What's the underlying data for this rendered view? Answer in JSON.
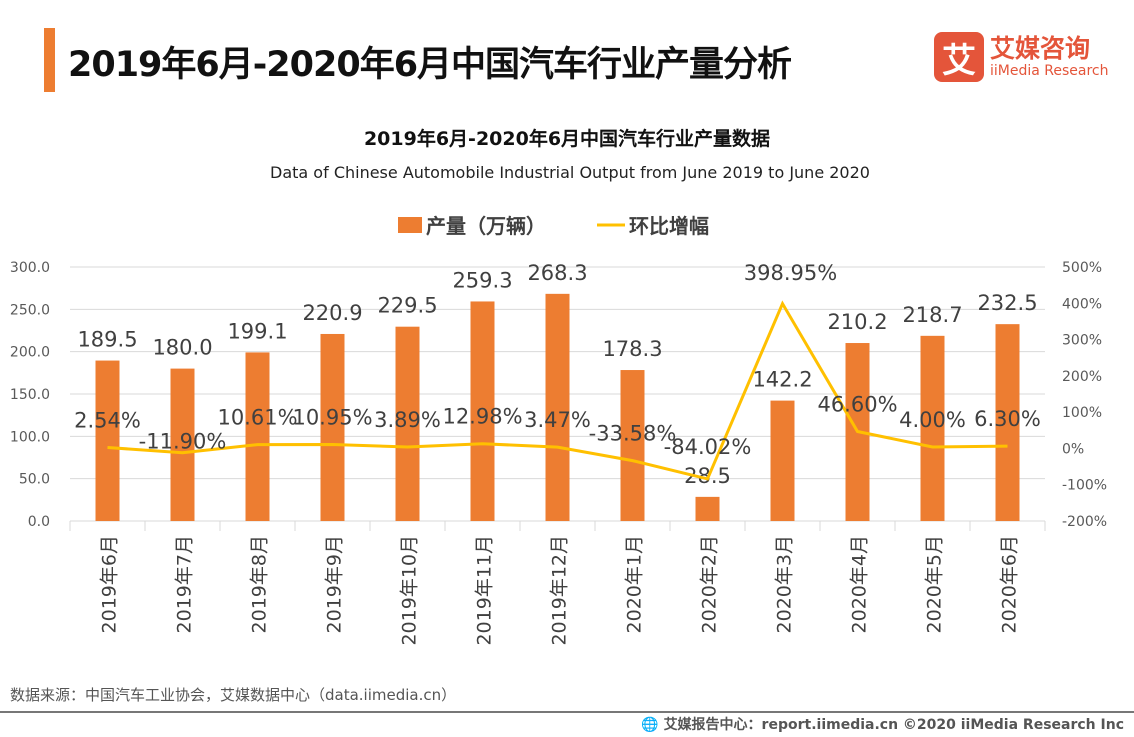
{
  "header": {
    "title": "2019年6月-2020年6月中国汽车行业产量分析",
    "logo_mark": "艾",
    "logo_cn": "艾媒咨询",
    "logo_en": "iiMedia Research"
  },
  "chart_data": {
    "type": "bar+line",
    "title": "2019年6月-2020年6月中国汽车行业产量数据",
    "subtitle": "Data of Chinese Automobile Industrial Output from June 2019 to June 2020",
    "categories": [
      "2019年6月",
      "2019年7月",
      "2019年8月",
      "2019年9月",
      "2019年10月",
      "2019年11月",
      "2019年12月",
      "2020年1月",
      "2020年2月",
      "2020年3月",
      "2020年4月",
      "2020年5月",
      "2020年6月"
    ],
    "series": [
      {
        "name": "产量（万辆）",
        "type": "bar",
        "axis": "left",
        "color": "#ed7d31",
        "values": [
          189.5,
          180.0,
          199.1,
          220.9,
          229.5,
          259.3,
          268.3,
          178.3,
          28.5,
          142.2,
          210.2,
          218.7,
          232.5
        ],
        "labels": [
          "189.5",
          "180.0",
          "199.1",
          "220.9",
          "229.5",
          "259.3",
          "268.3",
          "178.3",
          "28.5",
          "142.2",
          "210.2",
          "218.7",
          "232.5"
        ]
      },
      {
        "name": "环比增幅",
        "type": "line",
        "axis": "right",
        "color": "#ffc000",
        "values": [
          2.54,
          -11.9,
          10.61,
          10.95,
          3.89,
          12.98,
          3.47,
          -33.58,
          -84.02,
          398.95,
          46.6,
          4.0,
          6.3
        ],
        "labels": [
          "2.54%",
          "-11.90%",
          "10.61%",
          "10.95%",
          "3.89%",
          "12.98%",
          "3.47%",
          "-33.58%",
          "-84.02%",
          "398.95%",
          "46.60%",
          "4.00%",
          "6.30%"
        ]
      }
    ],
    "left_axis": {
      "range": [
        0,
        300
      ],
      "ticks": [
        "0.0",
        "50.0",
        "100.0",
        "150.0",
        "200.0",
        "250.0",
        "300.0"
      ]
    },
    "right_axis": {
      "range": [
        -200,
        500
      ],
      "ticks": [
        "-200%",
        "-100%",
        "0%",
        "100%",
        "200%",
        "300%",
        "400%",
        "500%"
      ]
    },
    "grid": true,
    "legend": "top"
  },
  "footer": {
    "source": "数据来源：中国汽车工业协会，艾媒数据中心（data.iimedia.cn）",
    "copyright": "艾媒报告中心：report.iimedia.cn   ©2020  iiMedia Research  Inc"
  }
}
